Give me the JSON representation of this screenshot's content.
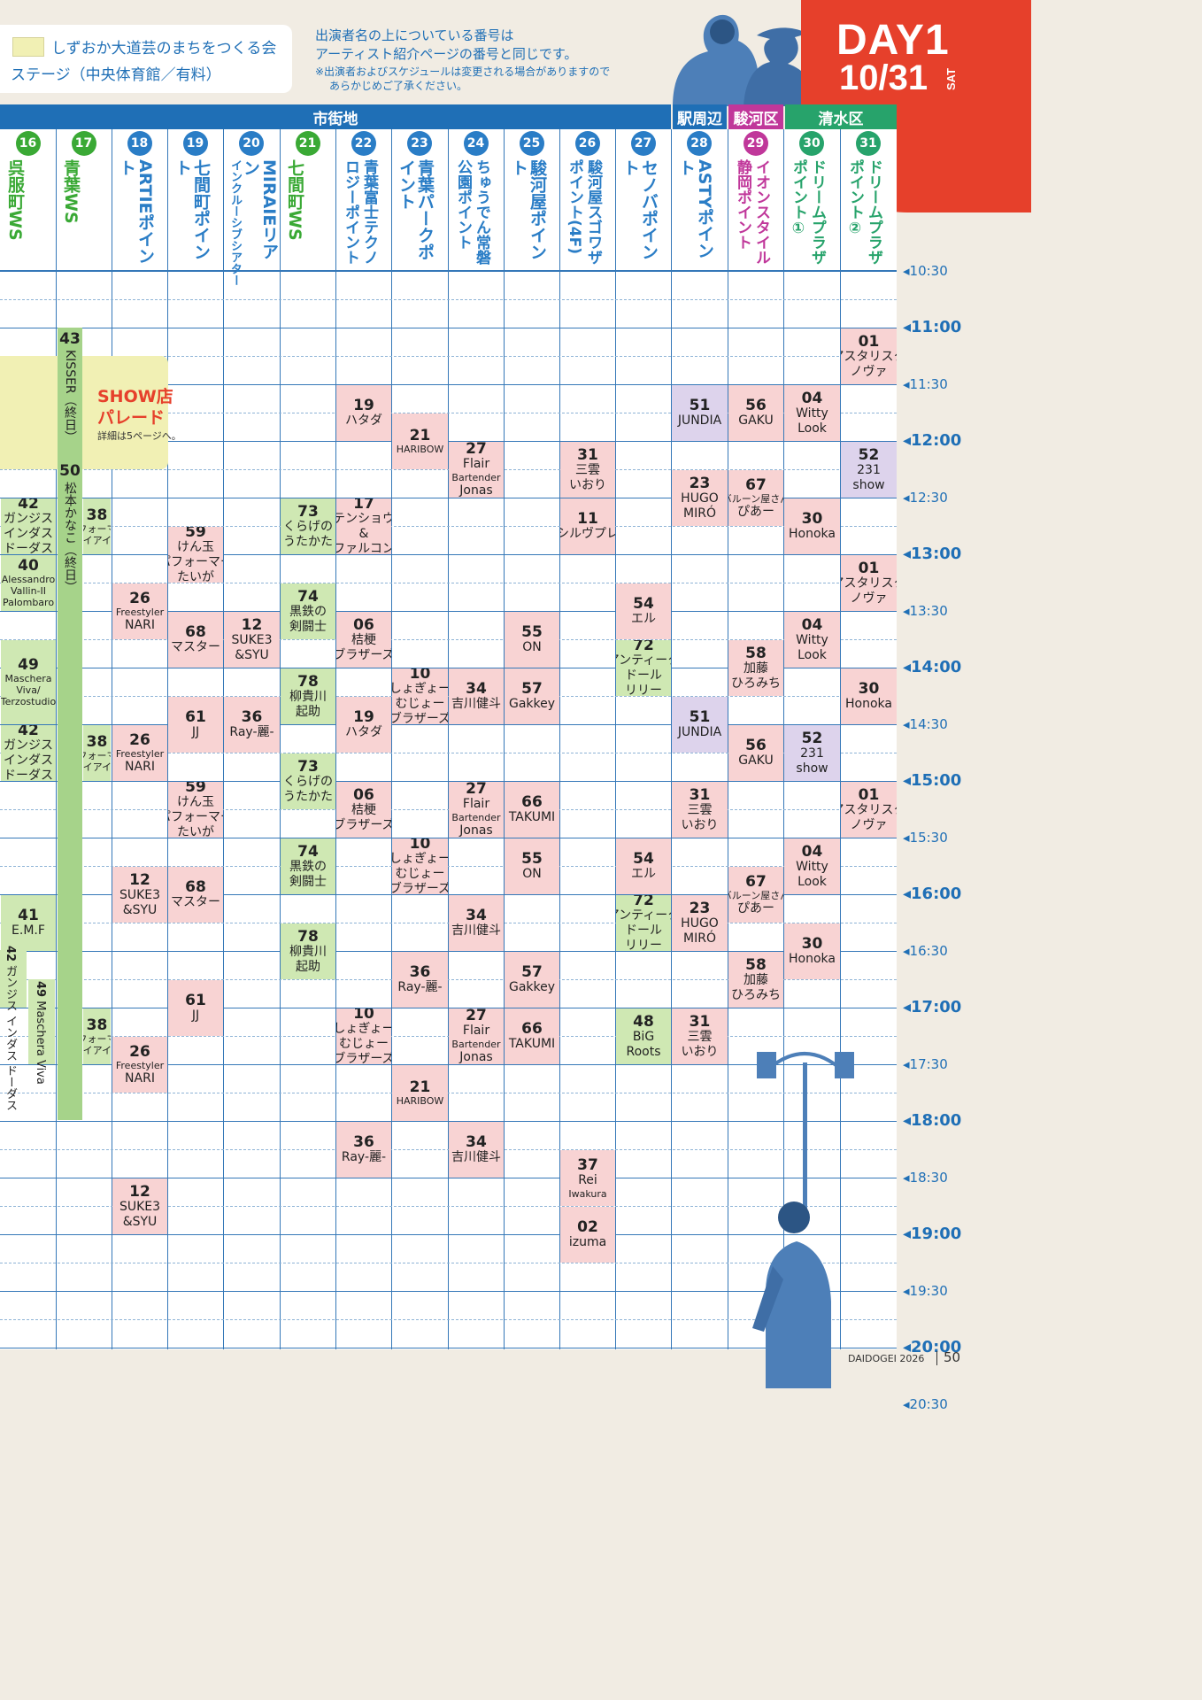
{
  "legend": {
    "swatch_label": "しずおか大道芸のまちをつくる会",
    "stage_label": "ステージ（中央体育館／有料）"
  },
  "notes": {
    "line1": "出演者名の上についている番号は",
    "line2": "アーティスト紹介ページの番号と同じです。",
    "small1": "※出演者およびスケジュールは変更される場合がありますので",
    "small2": "あらかじめご了承ください。"
  },
  "day": {
    "title": "DAY1",
    "date": "10/31",
    "dow": "SAT"
  },
  "areas": [
    {
      "label": "市街地",
      "color": "#1f6fb6"
    },
    {
      "label": "駅周辺",
      "color": "#1f6fb6"
    },
    {
      "label": "駿河区",
      "color": "#c0379a"
    },
    {
      "label": "清水区",
      "color": "#27a36b"
    }
  ],
  "columns": [
    {
      "num": "16",
      "name": "呉服町WS",
      "color": "#3aa935"
    },
    {
      "num": "17",
      "name": "青葉WS",
      "color": "#3aa935"
    },
    {
      "num": "18",
      "name": "ARTIEポイント",
      "color": "#2a7dc6"
    },
    {
      "num": "19",
      "name": "七間町ポイント",
      "color": "#2a7dc6"
    },
    {
      "num": "20",
      "name": "MIRAIEリアン",
      "sub": "インクルーシブシアター",
      "color": "#2a7dc6"
    },
    {
      "num": "21",
      "name": "七間町WS",
      "color": "#3aa935"
    },
    {
      "num": "22",
      "name": "青葉富士テクノロジーポイント",
      "color": "#2a7dc6"
    },
    {
      "num": "23",
      "name": "青葉パークポイント",
      "color": "#2a7dc6"
    },
    {
      "num": "24",
      "name": "ちゅうでん常磐公園ポイント",
      "color": "#2a7dc6"
    },
    {
      "num": "25",
      "name": "駿河屋ポイント",
      "color": "#2a7dc6"
    },
    {
      "num": "26",
      "name": "駿河屋スゴワザポイント(4F)",
      "color": "#2a7dc6"
    },
    {
      "num": "27",
      "name": "セノバポイント",
      "color": "#2a7dc6"
    },
    {
      "num": "28",
      "name": "ASTYポイント",
      "color": "#2a7dc6"
    },
    {
      "num": "29",
      "name": "イオンスタイル静岡ポイント",
      "color": "#c0379a"
    },
    {
      "num": "30",
      "name": "ドリームプラザポイント①",
      "color": "#27a36b"
    },
    {
      "num": "31",
      "name": "ドリームプラザポイント②",
      "color": "#27a36b"
    }
  ],
  "times": [
    "10:30",
    "11:00",
    "11:30",
    "12:00",
    "12:30",
    "13:00",
    "13:30",
    "14:00",
    "14:30",
    "15:00",
    "15:30",
    "16:00",
    "16:30",
    "17:00",
    "17:30",
    "18:00",
    "18:30",
    "19:00",
    "19:30",
    "20:00",
    "20:30"
  ],
  "parade": {
    "title1": "SHOW店",
    "title2": "パレード",
    "detail": "詳細は5ページへ。"
  },
  "long_bars": {
    "c17a": {
      "num": "43",
      "text": "KISSER（終日）"
    },
    "c17b": {
      "num": "50",
      "text": "松本かなこ（終日）"
    }
  },
  "events": [
    {
      "c": 0,
      "s": "12:30",
      "e": "13:00",
      "num": "42",
      "name": "ガンジス\nインダス\nドーダス",
      "col": "green"
    },
    {
      "c": 0,
      "s": "13:00",
      "e": "13:30",
      "num": "40",
      "name": "Alessandro\nVallin-II\nPalombaro",
      "col": "green",
      "small": true
    },
    {
      "c": 0,
      "s": "13:45",
      "e": "14:30",
      "num": "49",
      "name": "Maschera\nViva/\nTerzostudio",
      "col": "green",
      "small": true
    },
    {
      "c": 0,
      "s": "14:30",
      "e": "15:00",
      "num": "42",
      "name": "ガンジス\nインダス\nドーダス",
      "col": "green"
    },
    {
      "c": 0,
      "s": "16:00",
      "e": "16:30",
      "num": "41",
      "name": "E.M.F",
      "col": "green"
    },
    {
      "c": 1,
      "s": "12:30",
      "e": "13:00",
      "num": "38",
      "name": "パフォーマー\nアイアイ☆",
      "col": "green",
      "narrow": true
    },
    {
      "c": 1,
      "s": "14:30",
      "e": "15:00",
      "num": "38",
      "name": "パフォーマー\nアイアイ☆",
      "col": "green",
      "narrow": true
    },
    {
      "c": 1,
      "s": "17:00",
      "e": "17:30",
      "num": "38",
      "name": "パフォーマー\nアイアイ☆",
      "col": "green",
      "narrow": true
    },
    {
      "c": 2,
      "s": "13:15",
      "e": "13:45",
      "num": "26",
      "name": "Freestyler\nNARI",
      "col": "pink"
    },
    {
      "c": 2,
      "s": "14:30",
      "e": "15:00",
      "num": "26",
      "name": "Freestyler\nNARI",
      "col": "pink"
    },
    {
      "c": 2,
      "s": "15:45",
      "e": "16:15",
      "num": "12",
      "name": "SUKE3\n&SYU",
      "col": "pink"
    },
    {
      "c": 2,
      "s": "17:15",
      "e": "17:45",
      "num": "26",
      "name": "Freestyler\nNARI",
      "col": "pink"
    },
    {
      "c": 2,
      "s": "18:30",
      "e": "19:00",
      "num": "12",
      "name": "SUKE3\n&SYU",
      "col": "pink"
    },
    {
      "c": 3,
      "s": "12:45",
      "e": "13:15",
      "num": "59",
      "name": "けん玉\nパフォーマー\nたいが",
      "col": "pink"
    },
    {
      "c": 3,
      "s": "13:30",
      "e": "14:00",
      "num": "68",
      "name": "マスター",
      "col": "pink"
    },
    {
      "c": 3,
      "s": "14:15",
      "e": "14:45",
      "num": "61",
      "name": "JJ",
      "col": "pink"
    },
    {
      "c": 3,
      "s": "15:00",
      "e": "15:30",
      "num": "59",
      "name": "けん玉\nパフォーマー\nたいが",
      "col": "pink"
    },
    {
      "c": 3,
      "s": "15:45",
      "e": "16:15",
      "num": "68",
      "name": "マスター",
      "col": "pink"
    },
    {
      "c": 3,
      "s": "16:45",
      "e": "17:15",
      "num": "61",
      "name": "JJ",
      "col": "pink"
    },
    {
      "c": 4,
      "s": "13:30",
      "e": "14:00",
      "num": "12",
      "name": "SUKE3\n&SYU",
      "col": "pink"
    },
    {
      "c": 4,
      "s": "14:15",
      "e": "14:45",
      "num": "36",
      "name": "Ray-麗-",
      "col": "pink"
    },
    {
      "c": 5,
      "s": "12:30",
      "e": "13:00",
      "num": "73",
      "name": "くらげの\nうたかた",
      "col": "green"
    },
    {
      "c": 5,
      "s": "13:15",
      "e": "13:45",
      "num": "74",
      "name": "黒鉄の\n剣闘士",
      "col": "green"
    },
    {
      "c": 5,
      "s": "14:00",
      "e": "14:30",
      "num": "78",
      "name": "柳貴川\n起助",
      "col": "green"
    },
    {
      "c": 5,
      "s": "14:45",
      "e": "15:15",
      "num": "73",
      "name": "くらげの\nうたかた",
      "col": "green"
    },
    {
      "c": 5,
      "s": "15:30",
      "e": "16:00",
      "num": "74",
      "name": "黒鉄の\n剣闘士",
      "col": "green"
    },
    {
      "c": 5,
      "s": "16:15",
      "e": "16:45",
      "num": "78",
      "name": "柳貴川\n起助",
      "col": "green"
    },
    {
      "c": 6,
      "s": "11:30",
      "e": "12:00",
      "num": "19",
      "name": "ハタダ",
      "col": "pink"
    },
    {
      "c": 6,
      "s": "12:30",
      "e": "13:00",
      "num": "17",
      "name": "テンショウ\n&\nファルコン",
      "col": "pink"
    },
    {
      "c": 6,
      "s": "13:30",
      "e": "14:00",
      "num": "06",
      "name": "桔梗\nブラザーズ",
      "col": "pink"
    },
    {
      "c": 6,
      "s": "14:15",
      "e": "14:45",
      "num": "19",
      "name": "ハタダ",
      "col": "pink"
    },
    {
      "c": 6,
      "s": "15:00",
      "e": "15:30",
      "num": "06",
      "name": "桔梗\nブラザーズ",
      "col": "pink"
    },
    {
      "c": 6,
      "s": "17:00",
      "e": "17:30",
      "num": "10",
      "name": "しょぎょー\nむじょー\nブラザーズ",
      "col": "pink"
    },
    {
      "c": 6,
      "s": "18:00",
      "e": "18:30",
      "num": "36",
      "name": "Ray-麗-",
      "col": "pink"
    },
    {
      "c": 7,
      "s": "11:45",
      "e": "12:15",
      "num": "21",
      "name": "HARIBOW",
      "col": "pink"
    },
    {
      "c": 7,
      "s": "14:00",
      "e": "14:30",
      "num": "10",
      "name": "しょぎょー\nむじょー\nブラザーズ",
      "col": "pink"
    },
    {
      "c": 7,
      "s": "15:30",
      "e": "16:00",
      "num": "10",
      "name": "しょぎょー\nむじょー\nブラザーズ",
      "col": "pink"
    },
    {
      "c": 7,
      "s": "16:30",
      "e": "17:00",
      "num": "36",
      "name": "Ray-麗-",
      "col": "pink"
    },
    {
      "c": 7,
      "s": "17:30",
      "e": "18:00",
      "num": "21",
      "name": "HARIBOW",
      "col": "pink"
    },
    {
      "c": 8,
      "s": "12:00",
      "e": "12:30",
      "num": "27",
      "name": "Flair\nBartender\nJonas",
      "col": "pink"
    },
    {
      "c": 8,
      "s": "14:00",
      "e": "14:30",
      "num": "34",
      "name": "吉川健斗",
      "col": "pink"
    },
    {
      "c": 8,
      "s": "15:00",
      "e": "15:30",
      "num": "27",
      "name": "Flair\nBartender\nJonas",
      "col": "pink"
    },
    {
      "c": 8,
      "s": "16:00",
      "e": "16:30",
      "num": "34",
      "name": "吉川健斗",
      "col": "pink"
    },
    {
      "c": 8,
      "s": "17:00",
      "e": "17:30",
      "num": "27",
      "name": "Flair\nBartender\nJonas",
      "col": "pink"
    },
    {
      "c": 8,
      "s": "18:00",
      "e": "18:30",
      "num": "34",
      "name": "吉川健斗",
      "col": "pink"
    },
    {
      "c": 9,
      "s": "13:30",
      "e": "14:00",
      "num": "55",
      "name": "ON",
      "col": "pink"
    },
    {
      "c": 9,
      "s": "14:00",
      "e": "14:30",
      "num": "57",
      "name": "Gakkey",
      "col": "pink"
    },
    {
      "c": 9,
      "s": "15:00",
      "e": "15:30",
      "num": "66",
      "name": "TAKUMI",
      "col": "pink"
    },
    {
      "c": 9,
      "s": "15:30",
      "e": "16:00",
      "num": "55",
      "name": "ON",
      "col": "pink"
    },
    {
      "c": 9,
      "s": "16:30",
      "e": "17:00",
      "num": "57",
      "name": "Gakkey",
      "col": "pink"
    },
    {
      "c": 9,
      "s": "17:00",
      "e": "17:30",
      "num": "66",
      "name": "TAKUMI",
      "col": "pink"
    },
    {
      "c": 10,
      "s": "12:00",
      "e": "12:30",
      "num": "31",
      "name": "三雲\nいおり",
      "col": "pink"
    },
    {
      "c": 10,
      "s": "12:30",
      "e": "13:00",
      "num": "11",
      "name": "シルヴプレ",
      "col": "pink"
    },
    {
      "c": 10,
      "s": "18:15",
      "e": "18:45",
      "num": "37",
      "name": "Rei\nIwakura",
      "col": "pink"
    },
    {
      "c": 10,
      "s": "18:45",
      "e": "19:15",
      "num": "02",
      "name": "izuma",
      "col": "pink"
    },
    {
      "c": 11,
      "s": "13:15",
      "e": "13:45",
      "num": "54",
      "name": "エル",
      "col": "pink"
    },
    {
      "c": 11,
      "s": "13:45",
      "e": "14:15",
      "num": "72",
      "name": "アンティーク\nドール\nリリー",
      "col": "green"
    },
    {
      "c": 11,
      "s": "15:30",
      "e": "16:00",
      "num": "54",
      "name": "エル",
      "col": "pink"
    },
    {
      "c": 11,
      "s": "16:00",
      "e": "16:30",
      "num": "72",
      "name": "アンティーク\nドール\nリリー",
      "col": "green"
    },
    {
      "c": 11,
      "s": "17:00",
      "e": "17:30",
      "num": "48",
      "name": "BiG\nRoots",
      "col": "green"
    },
    {
      "c": 12,
      "s": "11:30",
      "e": "12:00",
      "num": "51",
      "name": "JUNDIA",
      "col": "purple"
    },
    {
      "c": 12,
      "s": "12:15",
      "e": "12:45",
      "num": "23",
      "name": "HUGO\nMIRÓ",
      "col": "pink"
    },
    {
      "c": 12,
      "s": "14:15",
      "e": "14:45",
      "num": "51",
      "name": "JUNDIA",
      "col": "purple"
    },
    {
      "c": 12,
      "s": "15:00",
      "e": "15:30",
      "num": "31",
      "name": "三雲\nいおり",
      "col": "pink"
    },
    {
      "c": 12,
      "s": "16:00",
      "e": "16:30",
      "num": "23",
      "name": "HUGO\nMIRÓ",
      "col": "pink"
    },
    {
      "c": 12,
      "s": "17:00",
      "e": "17:30",
      "num": "31",
      "name": "三雲\nいおり",
      "col": "pink"
    },
    {
      "c": 13,
      "s": "11:30",
      "e": "12:00",
      "num": "56",
      "name": "GAKU",
      "col": "pink"
    },
    {
      "c": 13,
      "s": "12:15",
      "e": "12:45",
      "num": "67",
      "name": "バルーン屋さん\nぴあー",
      "col": "pink"
    },
    {
      "c": 13,
      "s": "13:45",
      "e": "14:15",
      "num": "58",
      "name": "加藤\nひろみち",
      "col": "pink"
    },
    {
      "c": 13,
      "s": "14:30",
      "e": "15:00",
      "num": "56",
      "name": "GAKU",
      "col": "pink"
    },
    {
      "c": 13,
      "s": "15:45",
      "e": "16:15",
      "num": "67",
      "name": "バルーン屋さん\nぴあー",
      "col": "pink"
    },
    {
      "c": 13,
      "s": "16:30",
      "e": "17:00",
      "num": "58",
      "name": "加藤\nひろみち",
      "col": "pink"
    },
    {
      "c": 14,
      "s": "11:30",
      "e": "12:00",
      "num": "04",
      "name": "Witty\nLook",
      "col": "pink"
    },
    {
      "c": 14,
      "s": "12:30",
      "e": "13:00",
      "num": "30",
      "name": "Honoka",
      "col": "pink"
    },
    {
      "c": 14,
      "s": "13:30",
      "e": "14:00",
      "num": "04",
      "name": "Witty\nLook",
      "col": "pink"
    },
    {
      "c": 14,
      "s": "14:30",
      "e": "15:00",
      "num": "52",
      "name": "231\nshow",
      "col": "purple"
    },
    {
      "c": 14,
      "s": "15:30",
      "e": "16:00",
      "num": "04",
      "name": "Witty\nLook",
      "col": "pink"
    },
    {
      "c": 14,
      "s": "16:15",
      "e": "16:45",
      "num": "30",
      "name": "Honoka",
      "col": "pink"
    },
    {
      "c": 15,
      "s": "11:00",
      "e": "11:30",
      "num": "01",
      "name": "アスタリスク\nノヴァ",
      "col": "pink"
    },
    {
      "c": 15,
      "s": "12:00",
      "e": "12:30",
      "num": "52",
      "name": "231\nshow",
      "col": "purple"
    },
    {
      "c": 15,
      "s": "13:00",
      "e": "13:30",
      "num": "01",
      "name": "アスタリスク\nノヴァ",
      "col": "pink"
    },
    {
      "c": 15,
      "s": "14:00",
      "e": "14:30",
      "num": "30",
      "name": "Honoka",
      "col": "pink"
    },
    {
      "c": 15,
      "s": "15:00",
      "e": "15:30",
      "num": "01",
      "name": "アスタリスク\nノヴァ",
      "col": "pink"
    }
  ],
  "side_events": [
    {
      "id": "a",
      "num": "42",
      "text": "ガンジス インダス ドーダス"
    },
    {
      "id": "b",
      "num": "49",
      "text": "Maschera Viva"
    }
  ],
  "footer": {
    "brand": "DAIDOGEI 2026",
    "page": "50"
  }
}
